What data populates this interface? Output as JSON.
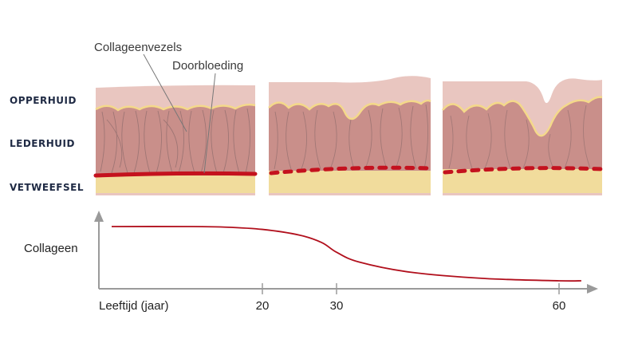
{
  "layers": {
    "epidermis": "OPPERHUID",
    "dermis": "LEDERHUID",
    "subcutis": "VETWEEFSEL"
  },
  "annotations": {
    "collagen_fibers": "Collageenvezels",
    "bleeding": "Doorbloeding"
  },
  "colors": {
    "epidermis": "#e9c6c0",
    "dermis": "#c98f8a",
    "fat": "#f1dc9c",
    "basement_line": "#f4d98a",
    "vessel": "#c4121e",
    "fiber": "#8d6b6b",
    "curve": "#b10f1c",
    "axis": "#9a9a9a"
  },
  "chart_data": {
    "type": "line",
    "xlabel": "Leeftijd (jaar)",
    "ylabel": "Collageen",
    "x_ticks": [
      20,
      30,
      60
    ],
    "x": [
      0,
      10,
      15,
      20,
      25,
      28,
      30,
      33,
      40,
      50,
      60,
      63
    ],
    "y": [
      1.0,
      1.0,
      0.99,
      0.95,
      0.85,
      0.72,
      0.55,
      0.38,
      0.2,
      0.09,
      0.05,
      0.05
    ],
    "xlim": [
      0,
      65
    ],
    "ylim": [
      0,
      1.1
    ],
    "grid": false
  }
}
